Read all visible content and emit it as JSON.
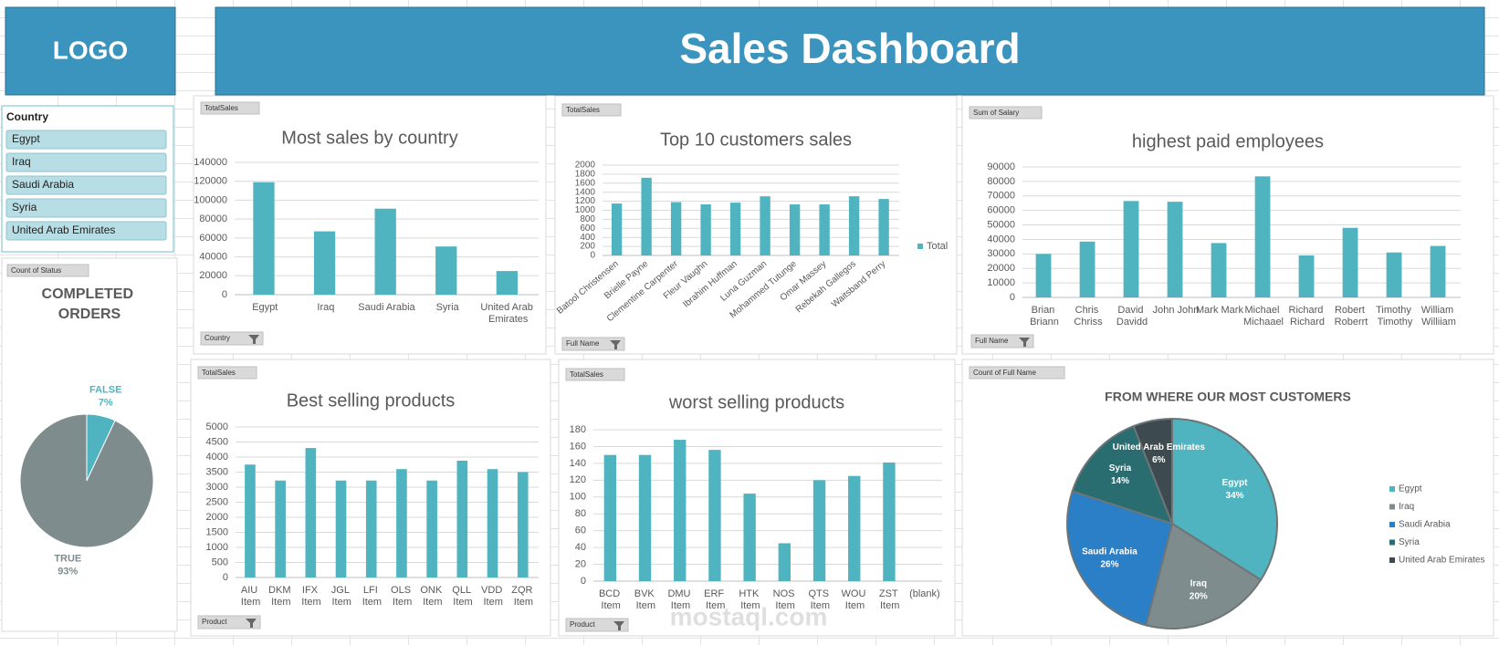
{
  "header": {
    "logo": "LOGO",
    "title": "Sales Dashboard"
  },
  "slicer": {
    "title": "Country",
    "items": [
      "Egypt",
      "Iraq",
      "Saudi Arabia",
      "Syria",
      "United Arab Emirates"
    ]
  },
  "watermark": "mostaql.com",
  "chart_data": [
    {
      "type": "bar",
      "title": "Most sales by country",
      "value_button": "TotalSales",
      "field_button": "Country",
      "categories": [
        "Egypt",
        "Iraq",
        "Saudi Arabia",
        "Syria",
        "United Arab Emirates"
      ],
      "values": [
        119000,
        67000,
        91000,
        51000,
        25000
      ],
      "color": "#4fb4bf",
      "ylim": [
        0,
        140000
      ],
      "yticks": [
        0,
        20000,
        40000,
        60000,
        80000,
        100000,
        120000,
        140000
      ],
      "grid": true
    },
    {
      "type": "bar",
      "title": "Top 10 customers sales",
      "value_button": "TotalSales",
      "field_button": "Full Name",
      "categories": [
        "Batool Christensen",
        "Brielle Payne",
        "Clementine Carpenter",
        "Fleur Vaughn",
        "Ibrahim Huffman",
        "Luna Guzman",
        "Mohammed Tutunge",
        "Omar Massey",
        "Rebekah Gallegos",
        "Waitsband Perry"
      ],
      "series": [
        {
          "name": "Total",
          "color": "#4fb4bf",
          "values": [
            1150,
            1720,
            1180,
            1130,
            1170,
            1310,
            1130,
            1130,
            1310,
            1250
          ]
        }
      ],
      "legend": "right",
      "ylim": [
        0,
        2000
      ],
      "yticks": [
        0,
        200,
        400,
        600,
        800,
        1000,
        1200,
        1400,
        1600,
        1800,
        2000
      ],
      "grid": true
    },
    {
      "type": "bar",
      "title": "highest paid employees",
      "value_button": "Sum of Salary",
      "field_button": "Full Name",
      "categories": [
        "Brian Briann",
        "Chris Chriss",
        "David Davidd",
        "John John",
        "Mark Mark",
        "Michael Michaael",
        "Richard Richard",
        "Robert Roberrt",
        "Timothy Timothy",
        "William Williiam"
      ],
      "values": [
        30000,
        38500,
        66500,
        66000,
        37500,
        83500,
        29000,
        48000,
        31000,
        35500
      ],
      "color": "#4fb4bf",
      "ylim": [
        0,
        90000
      ],
      "yticks": [
        0,
        10000,
        20000,
        30000,
        40000,
        50000,
        60000,
        70000,
        80000,
        90000
      ],
      "grid": true
    },
    {
      "type": "bar",
      "title": "Best selling products",
      "value_button": "TotalSales",
      "field_button": "Product",
      "categories": [
        "AIU Item",
        "DKM Item",
        "IFX Item",
        "JGL Item",
        "LFI Item",
        "OLS Item",
        "ONK Item",
        "QLL Item",
        "VDD Item",
        "ZQR Item"
      ],
      "values": [
        3750,
        3220,
        4300,
        3220,
        3220,
        3600,
        3220,
        3880,
        3600,
        3500
      ],
      "color": "#4fb4bf",
      "ylim": [
        0,
        5000
      ],
      "yticks": [
        0,
        500,
        1000,
        1500,
        2000,
        2500,
        3000,
        3500,
        4000,
        4500,
        5000
      ],
      "grid": true
    },
    {
      "type": "bar",
      "title": "worst selling products",
      "value_button": "TotalSales",
      "field_button": "Product",
      "categories": [
        "BCD Item",
        "BVK Item",
        "DMU Item",
        "ERF Item",
        "HTK Item",
        "NOS Item",
        "QTS Item",
        "WOU Item",
        "ZST Item",
        "(blank)"
      ],
      "values": [
        150,
        150,
        168,
        156,
        104,
        45,
        120,
        125,
        141,
        null
      ],
      "color": "#4fb4bf",
      "ylim": [
        0,
        180
      ],
      "yticks": [
        0,
        20,
        40,
        60,
        80,
        100,
        120,
        140,
        160,
        180
      ],
      "grid": true
    },
    {
      "type": "pie",
      "title": "FROM WHERE OUR MOST CUSTOMERS",
      "value_button": "Count of Full Name",
      "categories": [
        "Egypt",
        "Iraq",
        "Saudi Arabia",
        "Syria",
        "United Arab Emirates"
      ],
      "values": [
        34,
        20,
        26,
        14,
        6
      ],
      "value_labels": [
        "34%",
        "20%",
        "26%",
        "14%",
        "6%"
      ],
      "colors": [
        "#4fb4bf",
        "#7f8c8d",
        "#2a7fc7",
        "#2a6d71",
        "#3d4a4f"
      ],
      "legend": "right"
    },
    {
      "type": "pie",
      "title": "COMPLETED ORDERS",
      "value_button": "Count of Status",
      "categories": [
        "FALSE",
        "TRUE"
      ],
      "values": [
        7,
        93
      ],
      "value_labels": [
        "7%",
        "93%"
      ],
      "colors": [
        "#4fb4bf",
        "#7f8c8d"
      ]
    }
  ]
}
